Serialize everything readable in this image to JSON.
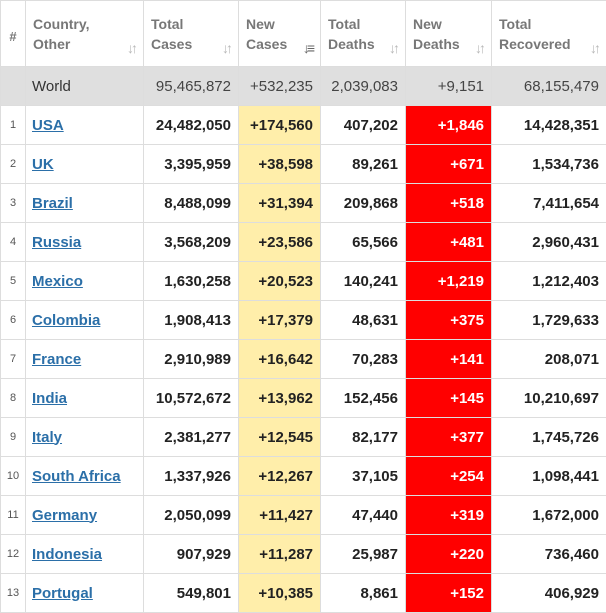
{
  "headers": {
    "idx": "#",
    "country": [
      "Country,",
      "Other"
    ],
    "total_cases": [
      "Total",
      "Cases"
    ],
    "new_cases": [
      "New",
      "Cases"
    ],
    "total_deaths": [
      "Total",
      "Deaths"
    ],
    "new_deaths": [
      "New",
      "Deaths"
    ],
    "total_recovered": [
      "Total",
      "Recovered"
    ]
  },
  "world": {
    "country": "World",
    "total_cases": "95,465,872",
    "new_cases": "+532,235",
    "total_deaths": "2,039,083",
    "new_deaths": "+9,151",
    "total_recovered": "68,155,479"
  },
  "rows": [
    {
      "idx": "1",
      "country": "USA",
      "total_cases": "24,482,050",
      "new_cases": "+174,560",
      "total_deaths": "407,202",
      "new_deaths": "+1,846",
      "total_recovered": "14,428,351"
    },
    {
      "idx": "2",
      "country": "UK",
      "total_cases": "3,395,959",
      "new_cases": "+38,598",
      "total_deaths": "89,261",
      "new_deaths": "+671",
      "total_recovered": "1,534,736"
    },
    {
      "idx": "3",
      "country": "Brazil",
      "total_cases": "8,488,099",
      "new_cases": "+31,394",
      "total_deaths": "209,868",
      "new_deaths": "+518",
      "total_recovered": "7,411,654"
    },
    {
      "idx": "4",
      "country": "Russia",
      "total_cases": "3,568,209",
      "new_cases": "+23,586",
      "total_deaths": "65,566",
      "new_deaths": "+481",
      "total_recovered": "2,960,431"
    },
    {
      "idx": "5",
      "country": "Mexico",
      "total_cases": "1,630,258",
      "new_cases": "+20,523",
      "total_deaths": "140,241",
      "new_deaths": "+1,219",
      "total_recovered": "1,212,403"
    },
    {
      "idx": "6",
      "country": "Colombia",
      "total_cases": "1,908,413",
      "new_cases": "+17,379",
      "total_deaths": "48,631",
      "new_deaths": "+375",
      "total_recovered": "1,729,633"
    },
    {
      "idx": "7",
      "country": "France",
      "total_cases": "2,910,989",
      "new_cases": "+16,642",
      "total_deaths": "70,283",
      "new_deaths": "+141",
      "total_recovered": "208,071"
    },
    {
      "idx": "8",
      "country": "India",
      "total_cases": "10,572,672",
      "new_cases": "+13,962",
      "total_deaths": "152,456",
      "new_deaths": "+145",
      "total_recovered": "10,210,697"
    },
    {
      "idx": "9",
      "country": "Italy",
      "total_cases": "2,381,277",
      "new_cases": "+12,545",
      "total_deaths": "82,177",
      "new_deaths": "+377",
      "total_recovered": "1,745,726"
    },
    {
      "idx": "10",
      "country": "South Africa",
      "total_cases": "1,337,926",
      "new_cases": "+12,267",
      "total_deaths": "37,105",
      "new_deaths": "+254",
      "total_recovered": "1,098,441"
    },
    {
      "idx": "11",
      "country": "Germany",
      "total_cases": "2,050,099",
      "new_cases": "+11,427",
      "total_deaths": "47,440",
      "new_deaths": "+319",
      "total_recovered": "1,672,000"
    },
    {
      "idx": "12",
      "country": "Indonesia",
      "total_cases": "907,929",
      "new_cases": "+11,287",
      "total_deaths": "25,987",
      "new_deaths": "+220",
      "total_recovered": "736,460"
    },
    {
      "idx": "13",
      "country": "Portugal",
      "total_cases": "549,801",
      "new_cases": "+10,385",
      "total_deaths": "8,861",
      "new_deaths": "+152",
      "total_recovered": "406,929"
    }
  ],
  "icons": {
    "sort_idle": "sort-arrows-icon",
    "sort_active": "sort-descending-icon"
  },
  "colors": {
    "new_cases_bg": "#ffeeaa",
    "new_deaths_bg": "#ff0000",
    "world_row_bg": "#dfdfdf",
    "link": "#2b6fa8"
  }
}
